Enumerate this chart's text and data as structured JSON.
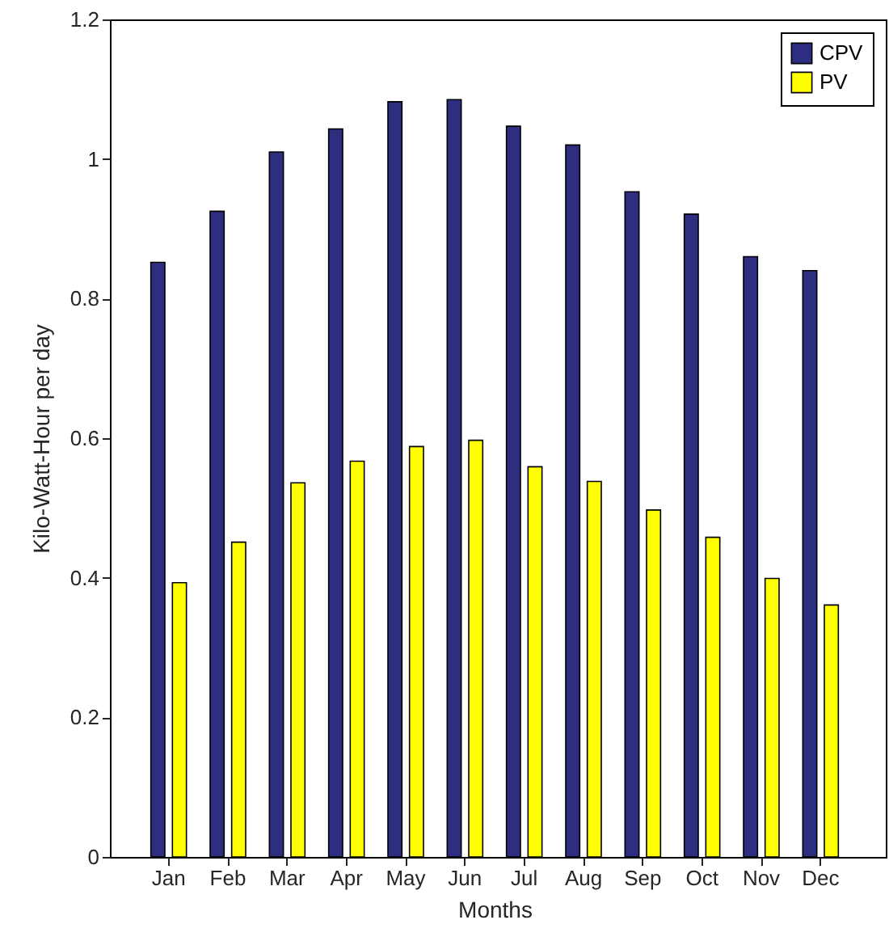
{
  "chart_data": {
    "type": "bar",
    "xlabel": "Months",
    "ylabel": "Kilo-Watt-Hour per day",
    "categories": [
      "Jan",
      "Feb",
      "Mar",
      "Apr",
      "May",
      "Jun",
      "Jul",
      "Aug",
      "Sep",
      "Oct",
      "Nov",
      "Dec"
    ],
    "series": [
      {
        "name": "CPV",
        "color": "#2e2e80",
        "values": [
          0.852,
          0.925,
          1.01,
          1.043,
          1.082,
          1.085,
          1.047,
          1.02,
          0.953,
          0.921,
          0.86,
          0.84
        ]
      },
      {
        "name": "PV",
        "color": "#ffff00",
        "values": [
          0.393,
          0.451,
          0.536,
          0.567,
          0.588,
          0.597,
          0.559,
          0.538,
          0.497,
          0.458,
          0.399,
          0.361
        ]
      }
    ],
    "ylim": [
      0,
      1.2
    ],
    "yticks": [
      0,
      0.2,
      0.4,
      0.6,
      0.8,
      1,
      1.2
    ],
    "grid": false,
    "legend": "top right"
  }
}
